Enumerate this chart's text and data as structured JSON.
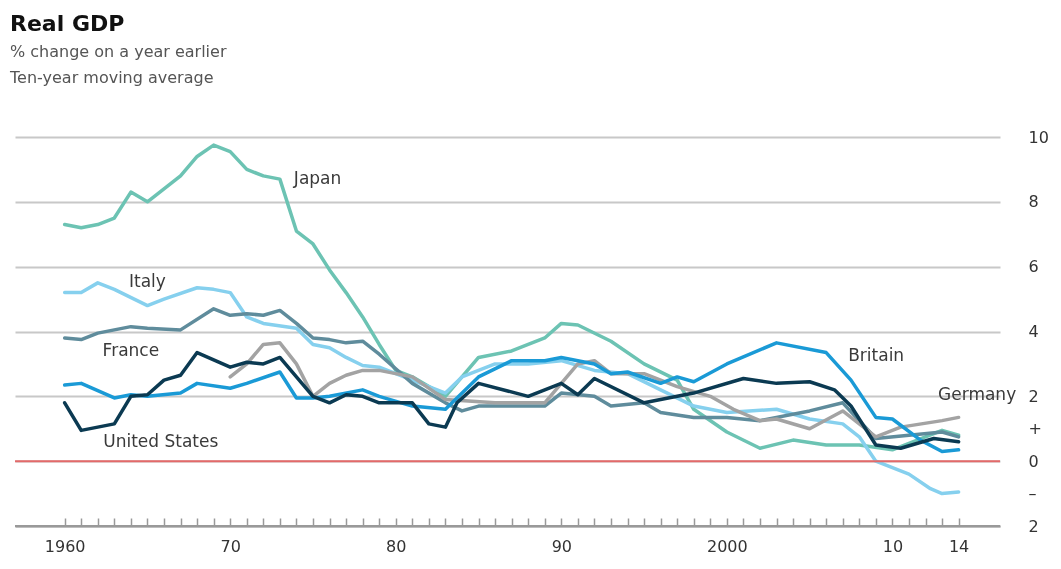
{
  "chart_data": {
    "type": "line",
    "title": "Real GDP",
    "subtitle": "% change on a year earlier",
    "annotations": [
      "Ten-year moving average"
    ],
    "xlim": [
      1957,
      2016.5
    ],
    "xticks": [
      1960,
      {
        "value": 1961,
        "label": null
      },
      {
        "value": 1962,
        "label": null
      },
      {
        "value": 1963,
        "label": null
      },
      {
        "value": 1964,
        "label": null
      },
      {
        "value": 1965,
        "label": null
      },
      {
        "value": 1966,
        "label": null
      },
      {
        "value": 1967,
        "label": null
      },
      {
        "value": 1968,
        "label": null
      },
      {
        "value": 1969,
        "label": null
      },
      {
        "value": 1970,
        "label": "70"
      },
      {
        "value": 1971,
        "label": null
      },
      {
        "value": 1972,
        "label": null
      },
      {
        "value": 1973,
        "label": null
      },
      {
        "value": 1974,
        "label": null
      },
      {
        "value": 1975,
        "label": null
      },
      {
        "value": 1976,
        "label": null
      },
      {
        "value": 1977,
        "label": null
      },
      {
        "value": 1978,
        "label": null
      },
      {
        "value": 1979,
        "label": null
      },
      {
        "value": 1980,
        "label": "80"
      },
      {
        "value": 1981,
        "label": null
      },
      {
        "value": 1982,
        "label": null
      },
      {
        "value": 1983,
        "label": null
      },
      {
        "value": 1984,
        "label": null
      },
      {
        "value": 1985,
        "label": null
      },
      {
        "value": 1986,
        "label": null
      },
      {
        "value": 1987,
        "label": null
      },
      {
        "value": 1988,
        "label": null
      },
      {
        "value": 1989,
        "label": null
      },
      {
        "value": 1990,
        "label": "90"
      },
      {
        "value": 1991,
        "label": null
      },
      {
        "value": 1992,
        "label": null
      },
      {
        "value": 1993,
        "label": null
      },
      {
        "value": 1994,
        "label": null
      },
      {
        "value": 1995,
        "label": null
      },
      {
        "value": 1996,
        "label": null
      },
      {
        "value": 1997,
        "label": null
      },
      {
        "value": 1998,
        "label": null
      },
      {
        "value": 1999,
        "label": null
      },
      2000,
      {
        "value": 2001,
        "label": null
      },
      {
        "value": 2002,
        "label": null
      },
      {
        "value": 2003,
        "label": null
      },
      {
        "value": 2004,
        "label": null
      },
      {
        "value": 2005,
        "label": null
      },
      {
        "value": 2006,
        "label": null
      },
      {
        "value": 2007,
        "label": null
      },
      {
        "value": 2008,
        "label": null
      },
      {
        "value": 2009,
        "label": null
      },
      {
        "value": 2010,
        "label": "10"
      },
      {
        "value": 2011,
        "label": null
      },
      {
        "value": 2012,
        "label": null
      },
      {
        "value": 2013,
        "label": null
      },
      {
        "value": 2014,
        "label": "14"
      }
    ],
    "ylim": [
      -2,
      10
    ],
    "yticks": [
      {
        "value": -2,
        "label": "2"
      },
      {
        "value": -1,
        "label": "–"
      },
      0,
      {
        "value": 1,
        "label": "+"
      },
      2,
      4,
      6,
      8,
      10
    ],
    "grid": "y",
    "ref_lines": [
      {
        "axis": "y",
        "value": 0,
        "color": "#e36a6a"
      }
    ],
    "series": [
      {
        "name": "Japan",
        "color": "#6cc3b3",
        "x": [
          1960,
          1961,
          1962,
          1963,
          1964,
          1965,
          1966,
          1967,
          1968,
          1969,
          1970,
          1971,
          1972,
          1973,
          1974,
          1975,
          1976,
          1977,
          1978,
          1979,
          1980,
          1981,
          1983,
          1984,
          1985,
          1987,
          1989,
          1990,
          1991,
          1993,
          1995,
          1997,
          1998,
          2000,
          2002,
          2004,
          2006,
          2008,
          2010,
          2011.5,
          2013,
          2014
        ],
        "values": [
          7.3,
          7.2,
          7.3,
          7.5,
          8.3,
          8.0,
          8.4,
          8.8,
          9.4,
          9.75,
          9.55,
          9.0,
          8.8,
          8.7,
          7.1,
          6.7,
          5.9,
          5.2,
          4.45,
          3.6,
          2.8,
          2.6,
          2.0,
          2.6,
          3.2,
          3.4,
          3.8,
          4.25,
          4.2,
          3.7,
          3.0,
          2.5,
          1.6,
          0.9,
          0.4,
          0.65,
          0.5,
          0.5,
          0.35,
          0.65,
          0.95,
          0.8
        ]
      },
      {
        "name": "Italy",
        "color": "#86d0ee",
        "x": [
          1960,
          1961,
          1962,
          1963,
          1965,
          1966,
          1968,
          1969,
          1970,
          1971,
          1972,
          1974,
          1975,
          1976,
          1977,
          1978,
          1979,
          1981,
          1983,
          1984,
          1986,
          1988,
          1990,
          1992,
          1994,
          1996,
          1998,
          2000,
          2003,
          2005,
          2007,
          2008,
          2009,
          2011,
          2012.3,
          2013,
          2014
        ],
        "values": [
          5.2,
          5.2,
          5.5,
          5.3,
          4.8,
          5.0,
          5.35,
          5.3,
          5.2,
          4.45,
          4.25,
          4.1,
          3.6,
          3.5,
          3.2,
          2.95,
          2.9,
          2.5,
          2.1,
          2.6,
          3.0,
          3.0,
          3.1,
          2.8,
          2.7,
          2.2,
          1.7,
          1.5,
          1.6,
          1.3,
          1.15,
          0.75,
          0.0,
          -0.4,
          -0.85,
          -1.0,
          -0.95
        ]
      },
      {
        "name": "France",
        "color": "#5f8c9c",
        "x": [
          1960,
          1961,
          1962,
          1964,
          1965,
          1967,
          1969,
          1970,
          1971,
          1972,
          1973,
          1974,
          1975,
          1976,
          1977,
          1978,
          1979,
          1981,
          1983,
          1984,
          1985,
          1987,
          1989,
          1990,
          1992,
          1993,
          1995,
          1996,
          1998,
          2000,
          2002,
          2005,
          2007,
          2009,
          2011,
          2013,
          2014
        ],
        "values": [
          3.8,
          3.75,
          3.95,
          4.15,
          4.1,
          4.05,
          4.7,
          4.5,
          4.55,
          4.5,
          4.65,
          4.25,
          3.8,
          3.75,
          3.65,
          3.7,
          3.3,
          2.4,
          1.8,
          1.55,
          1.7,
          1.7,
          1.7,
          2.1,
          2.0,
          1.7,
          1.8,
          1.5,
          1.35,
          1.35,
          1.25,
          1.55,
          1.8,
          0.7,
          0.8,
          0.9,
          0.75
        ]
      },
      {
        "name": "Germany",
        "color": "#a3a3a3",
        "x": [
          1970,
          1971,
          1972,
          1973,
          1974,
          1975,
          1976,
          1977,
          1978,
          1979,
          1981,
          1983,
          1986,
          1989,
          1991,
          1992,
          1993,
          1995,
          1997,
          1999,
          2000.4,
          2002,
          2003,
          2005,
          2007,
          2009,
          2010.5,
          2013,
          2014
        ],
        "values": [
          2.6,
          3.0,
          3.6,
          3.65,
          3.0,
          2.0,
          2.4,
          2.65,
          2.8,
          2.8,
          2.6,
          1.9,
          1.8,
          1.8,
          3.0,
          3.1,
          2.7,
          2.7,
          2.3,
          2.0,
          1.6,
          1.25,
          1.3,
          1.0,
          1.55,
          0.75,
          1.05,
          1.25,
          1.35
        ]
      },
      {
        "name": "Britain",
        "color": "#1a9ad6",
        "x": [
          1960,
          1961,
          1963,
          1964,
          1965,
          1967,
          1968,
          1970,
          1971,
          1973,
          1974,
          1975,
          1976,
          1978,
          1979,
          1981,
          1983,
          1985,
          1987,
          1989,
          1990,
          1992,
          1993,
          1994,
          1996,
          1997,
          1998,
          2000,
          2003,
          2006,
          2007.5,
          2009,
          2010,
          2011.7,
          2013,
          2014
        ],
        "values": [
          2.35,
          2.4,
          1.95,
          2.05,
          2.0,
          2.1,
          2.4,
          2.25,
          2.4,
          2.75,
          1.95,
          1.95,
          2.0,
          2.2,
          2.0,
          1.7,
          1.6,
          2.6,
          3.1,
          3.1,
          3.2,
          3.0,
          2.7,
          2.75,
          2.4,
          2.6,
          2.45,
          3.0,
          3.65,
          3.35,
          2.5,
          1.35,
          1.3,
          0.65,
          0.3,
          0.35
        ]
      },
      {
        "name": "United States",
        "color": "#0b3a52",
        "x": [
          1960,
          1961,
          1963,
          1964,
          1965,
          1966,
          1967,
          1968,
          1970,
          1971,
          1972,
          1973,
          1974,
          1975,
          1976,
          1977,
          1978,
          1979,
          1981,
          1982,
          1983,
          1983.7,
          1985,
          1988,
          1990,
          1991,
          1992,
          1995,
          1998,
          2001,
          2003,
          2005,
          2006.5,
          2007.5,
          2009,
          2010.5,
          2012.5,
          2014
        ],
        "values": [
          1.8,
          0.95,
          1.15,
          2.0,
          2.05,
          2.5,
          2.65,
          3.35,
          2.9,
          3.05,
          3.0,
          3.2,
          2.6,
          2.0,
          1.8,
          2.05,
          2.0,
          1.8,
          1.8,
          1.15,
          1.05,
          1.8,
          2.4,
          2.0,
          2.4,
          2.05,
          2.55,
          1.8,
          2.1,
          2.55,
          2.4,
          2.45,
          2.2,
          1.7,
          0.5,
          0.4,
          0.7,
          0.6
        ]
      }
    ]
  }
}
